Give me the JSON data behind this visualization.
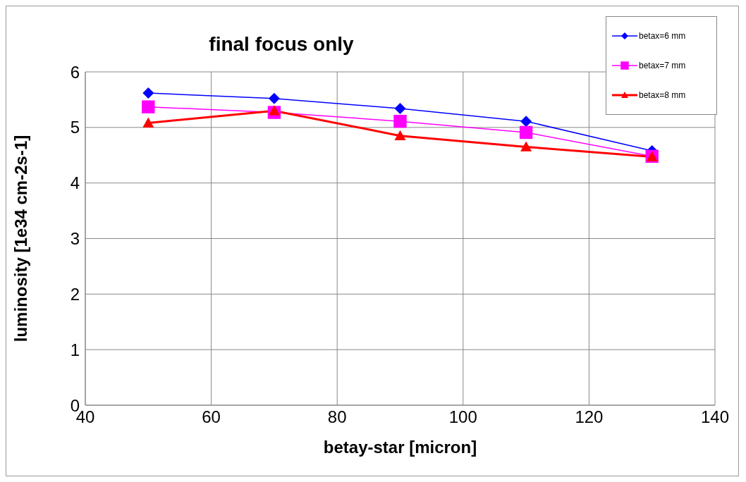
{
  "chart_data": {
    "type": "line",
    "title": "final focus only",
    "xlabel": "betay-star [micron]",
    "ylabel": "luminosity [1e34 cm-2s-1]",
    "x": [
      50,
      70,
      90,
      110,
      130
    ],
    "series": [
      {
        "name": "betax=6 mm",
        "color": "#0000ff",
        "marker": "diamond",
        "values": [
          5.62,
          5.52,
          5.34,
          5.11,
          4.58
        ]
      },
      {
        "name": "betax=7 mm",
        "color": "#ff00ff",
        "marker": "square",
        "values": [
          5.37,
          5.27,
          5.11,
          4.91,
          4.48
        ]
      },
      {
        "name": "betax=8 mm",
        "color": "#ff0000",
        "marker": "triangle",
        "values": [
          5.08,
          5.3,
          4.85,
          4.65,
          4.47
        ]
      }
    ],
    "xlim": [
      40,
      140
    ],
    "xticks": [
      40,
      60,
      80,
      100,
      120,
      140
    ],
    "ylim": [
      0,
      6
    ],
    "yticks": [
      0,
      1,
      2,
      3,
      4,
      5,
      6
    ],
    "grid": true,
    "legend": "top right"
  }
}
